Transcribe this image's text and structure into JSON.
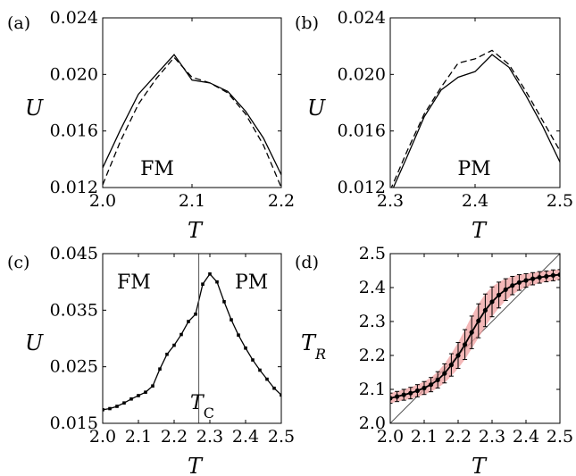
{
  "chart_data": [
    {
      "panel": "(a)",
      "type": "line",
      "xlabel": "T",
      "ylabel": "U",
      "xlim": [
        2.0,
        2.2
      ],
      "ylim": [
        0.012,
        0.024
      ],
      "xticks": [
        "2.0",
        "2.1",
        "2.2"
      ],
      "yticks": [
        "0.012",
        "0.016",
        "0.020",
        "0.024"
      ],
      "annotation": "FM",
      "series": [
        {
          "style": "solid",
          "x": [
            2.0,
            2.02,
            2.04,
            2.06,
            2.08,
            2.1,
            2.12,
            2.14,
            2.16,
            2.18,
            2.2
          ],
          "y": [
            0.0134,
            0.0161,
            0.0186,
            0.02,
            0.0214,
            0.0196,
            0.0194,
            0.0188,
            0.0174,
            0.0155,
            0.0129
          ]
        },
        {
          "style": "dashed",
          "x": [
            2.0,
            2.02,
            2.04,
            2.06,
            2.08,
            2.1,
            2.12,
            2.14,
            2.16,
            2.18,
            2.2
          ],
          "y": [
            0.0122,
            0.0153,
            0.0179,
            0.0197,
            0.0212,
            0.0198,
            0.0194,
            0.0187,
            0.0172,
            0.015,
            0.012
          ]
        }
      ]
    },
    {
      "panel": "(b)",
      "type": "line",
      "xlabel": "T",
      "ylabel": "U",
      "xlim": [
        2.3,
        2.5
      ],
      "ylim": [
        0.012,
        0.024
      ],
      "xticks": [
        "2.3",
        "2.4",
        "2.5"
      ],
      "yticks": [
        "0.012",
        "0.016",
        "0.020",
        "0.024"
      ],
      "annotation": "PM",
      "series": [
        {
          "style": "solid",
          "x": [
            2.3,
            2.32,
            2.34,
            2.36,
            2.38,
            2.4,
            2.42,
            2.44,
            2.46,
            2.48,
            2.5
          ],
          "y": [
            0.0115,
            0.0142,
            0.017,
            0.0189,
            0.0198,
            0.0202,
            0.0214,
            0.0205,
            0.0185,
            0.0163,
            0.0138
          ]
        },
        {
          "style": "dashed",
          "x": [
            2.3,
            2.32,
            2.34,
            2.36,
            2.38,
            2.4,
            2.42,
            2.44,
            2.46,
            2.48,
            2.5
          ],
          "y": [
            0.0118,
            0.0146,
            0.0172,
            0.0191,
            0.0208,
            0.0211,
            0.0217,
            0.0207,
            0.0188,
            0.0167,
            0.0146
          ]
        }
      ]
    },
    {
      "panel": "(c)",
      "type": "line",
      "xlabel": "T",
      "ylabel": "U",
      "xlim": [
        2.0,
        2.5
      ],
      "ylim": [
        0.015,
        0.045
      ],
      "xticks": [
        "2.0",
        "2.1",
        "2.2",
        "2.3",
        "2.4",
        "2.5"
      ],
      "yticks": [
        "0.015",
        "0.025",
        "0.035",
        "0.045"
      ],
      "vline": 2.269,
      "vline_label": "T_C",
      "annotations": [
        "FM",
        "PM"
      ],
      "series": [
        {
          "style": "solid-markers",
          "x": [
            2.0,
            2.02,
            2.04,
            2.06,
            2.08,
            2.1,
            2.12,
            2.14,
            2.16,
            2.18,
            2.2,
            2.22,
            2.24,
            2.26,
            2.28,
            2.3,
            2.32,
            2.34,
            2.36,
            2.38,
            2.4,
            2.42,
            2.44,
            2.46,
            2.48,
            2.5
          ],
          "y": [
            0.0174,
            0.0176,
            0.018,
            0.0186,
            0.0193,
            0.0199,
            0.0205,
            0.0216,
            0.0246,
            0.0272,
            0.0288,
            0.0307,
            0.033,
            0.0343,
            0.0396,
            0.0414,
            0.04,
            0.0365,
            0.0333,
            0.0306,
            0.0283,
            0.0262,
            0.0244,
            0.0228,
            0.0212,
            0.02
          ]
        }
      ]
    },
    {
      "panel": "(d)",
      "type": "line",
      "xlabel": "T",
      "ylabel": "T_R",
      "xlim": [
        2.0,
        2.5
      ],
      "ylim": [
        2.0,
        2.5
      ],
      "xticks": [
        "2.0",
        "2.1",
        "2.2",
        "2.3",
        "2.4",
        "2.5"
      ],
      "yticks": [
        "2.0",
        "2.1",
        "2.2",
        "2.3",
        "2.4",
        "2.5"
      ],
      "diagonal": true,
      "band_color": "#f0a0a0",
      "series": [
        {
          "style": "solid-markers-errorbars",
          "x": [
            2.0,
            2.02,
            2.04,
            2.06,
            2.08,
            2.1,
            2.12,
            2.14,
            2.16,
            2.18,
            2.2,
            2.22,
            2.24,
            2.26,
            2.28,
            2.3,
            2.32,
            2.34,
            2.36,
            2.38,
            2.4,
            2.42,
            2.44,
            2.46,
            2.48,
            2.5
          ],
          "y": [
            2.074,
            2.079,
            2.084,
            2.089,
            2.096,
            2.104,
            2.114,
            2.128,
            2.147,
            2.172,
            2.2,
            2.232,
            2.268,
            2.302,
            2.333,
            2.358,
            2.378,
            2.394,
            2.406,
            2.415,
            2.421,
            2.426,
            2.43,
            2.433,
            2.436,
            2.438
          ],
          "err": [
            0.015,
            0.015,
            0.016,
            0.017,
            0.018,
            0.019,
            0.021,
            0.024,
            0.028,
            0.033,
            0.038,
            0.044,
            0.048,
            0.05,
            0.048,
            0.044,
            0.038,
            0.032,
            0.027,
            0.023,
            0.02,
            0.018,
            0.017,
            0.016,
            0.016,
            0.015
          ]
        }
      ]
    }
  ]
}
